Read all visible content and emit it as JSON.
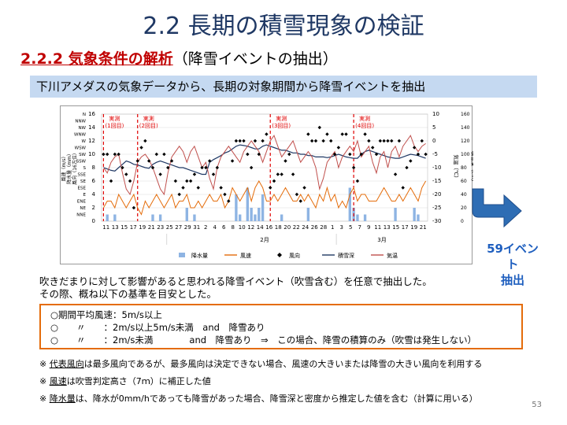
{
  "slide": {
    "title": "2.2 長期の積雪現象の検証",
    "subtitle_main": "2.2.2 気象条件の解析",
    "subtitle_rest": "（降雪イベントの抽出）",
    "header_band": "下川アメダスの気象データから、長期の対象期間から降雪イベントを抽出",
    "event_count_line1": "59イベント",
    "event_count_line2": "抽出",
    "description_1": "吹きだまりに対して影響があると思われる降雪イベント（吹雪含む）を任意で抽出した。",
    "description_2": "その際、概ね以下の基準を目安とした。",
    "criteria": [
      "○期間平均風速：5m/s以上",
      "○　　〃　　：2m/s以上5m/s未満　and　降雪あり",
      "○　　〃　　：2m/s未満　　　　and　降雪あり　⇒　この場合、降雪の積算のみ（吹雪は発生しない）"
    ],
    "note_mark": "※",
    "note1_underlined": "代表風向",
    "note1_rest": "は最多風向であるが、最多風向は決定できない場合、風速の大きいまたは降雪の大きい風向を利用する",
    "note2_underlined": "風速",
    "note2_rest": "は吹雪判定高さ（7ｍ）に補正した値",
    "note3_underlined": "降水量",
    "note3_rest": "は、降水が0mm/hであっても降雪があった場合、降雪深と密度から推定した値を含む（計算に用いる）",
    "page_number": "53",
    "colors": {
      "title": "#1f3864",
      "accent_red": "#c00000",
      "band": "#c5d9f1",
      "border_orange": "#e46c0a",
      "arrow": "#2e6db4"
    }
  },
  "chart_data": {
    "type": "line",
    "x_ticks": [
      "11",
      "13",
      "15",
      "17",
      "19",
      "21",
      "23",
      "25",
      "27",
      "29",
      "31",
      "2",
      "4",
      "6",
      "8",
      "10",
      "12",
      "14",
      "16",
      "18",
      "20",
      "22",
      "24",
      "26",
      "28",
      "1",
      "3",
      "5",
      "7",
      "9",
      "11",
      "13",
      "15",
      "17",
      "19",
      "21"
    ],
    "month_labels": [
      "2月",
      "3月"
    ],
    "left_axis_ticks": [
      "0",
      "2",
      "4",
      "6",
      "8",
      "10",
      "12",
      "14",
      "16"
    ],
    "left_axis_label": "風速（m/s）\n降水量（mm）\n風向（16方位）",
    "direction_labels": [
      "NNE",
      "NE",
      "ENE",
      "E",
      "ESE",
      "SE",
      "SSE",
      "S",
      "SSW",
      "SW",
      "WSW",
      "W",
      "WNW",
      "NW",
      "NNW",
      "N"
    ],
    "temp_axis_ticks": [
      "10",
      "5",
      "0",
      "-5",
      "-10",
      "-15",
      "-20",
      "-25",
      "-30"
    ],
    "temp_axis_label": "気温（℃）",
    "temp_range": [
      -30,
      10
    ],
    "snow_axis_ticks": [
      "160",
      "140",
      "120",
      "100",
      "80",
      "60",
      "40",
      "20",
      "0"
    ],
    "snow_axis_label": "積雪深（cm）",
    "snow_range": [
      0,
      160
    ],
    "ylim": [
      0,
      16
    ],
    "observation_labels": [
      "実測\n(1回目)",
      "実測\n(2回目)",
      "実測\n(3回目)",
      "実測\n(4回目)"
    ],
    "observation_days": [
      0.5,
      9.5,
      44.5,
      66.5
    ],
    "legend": [
      "降水量",
      "風速",
      "風向",
      "積雪深",
      "気温"
    ],
    "series": [
      {
        "name": "降水量",
        "values": [
          0,
          1,
          0,
          1,
          0,
          0,
          0,
          0,
          0,
          0,
          0,
          0,
          0,
          1,
          0,
          1,
          0,
          0,
          0,
          0,
          0,
          0,
          2,
          0,
          1,
          0,
          0,
          0,
          0,
          0,
          0,
          0,
          0,
          0,
          0,
          4,
          1,
          0,
          5,
          2,
          1,
          2,
          4,
          0,
          0,
          0,
          0,
          1,
          0,
          0,
          0,
          0,
          0,
          0,
          2,
          0,
          0,
          0,
          0,
          0,
          0,
          0,
          0,
          0,
          0,
          5,
          2,
          1,
          0,
          1,
          0,
          0,
          0,
          0,
          0,
          0,
          0,
          2,
          0,
          0,
          0,
          0,
          2,
          1,
          0,
          0
        ]
      },
      {
        "name": "風速",
        "values": [
          2,
          3,
          3,
          2,
          4,
          3,
          2,
          3,
          4,
          2,
          1,
          3,
          2,
          3,
          4,
          3,
          2,
          3,
          4,
          2,
          3,
          3,
          4,
          2,
          2,
          3,
          2,
          3,
          4,
          3,
          3,
          4,
          2,
          3,
          5,
          4,
          3,
          4,
          5,
          3,
          5,
          6,
          5,
          3,
          3,
          4,
          3,
          4,
          5,
          4,
          3,
          3,
          4,
          3,
          4,
          3,
          2,
          4,
          3,
          5,
          3,
          4,
          2,
          3,
          2,
          4,
          5,
          3,
          4,
          4,
          3,
          3,
          3,
          4,
          5,
          4,
          3,
          3,
          4,
          3,
          4,
          5,
          4,
          3,
          5,
          6
        ]
      },
      {
        "name": "風向",
        "values": [
          10,
          10,
          6,
          10,
          10,
          8,
          7,
          6,
          2,
          9,
          11,
          12,
          9,
          8,
          10,
          7,
          10,
          8,
          9,
          6,
          4,
          5,
          6,
          6,
          7,
          5,
          8,
          8,
          9,
          7,
          8,
          5,
          4,
          3,
          9,
          12,
          12,
          12,
          10,
          8,
          12,
          10,
          12,
          13,
          5,
          6,
          7,
          7,
          9,
          10,
          7,
          4,
          3,
          5,
          13,
          12,
          12,
          14,
          12,
          13,
          12,
          10,
          11,
          13,
          13,
          10,
          8,
          6,
          10,
          13,
          12,
          11,
          10,
          12,
          12,
          12,
          12,
          7,
          12,
          5,
          8,
          9,
          11,
          10,
          12,
          10
        ]
      },
      {
        "name": "積雪深",
        "values": [
          80,
          78,
          76,
          75,
          80,
          85,
          90,
          88,
          85,
          84,
          82,
          80,
          79,
          85,
          88,
          90,
          88,
          86,
          84,
          82,
          80,
          80,
          78,
          76,
          74,
          72,
          70,
          70,
          88,
          92,
          95,
          98,
          102,
          104,
          108,
          112,
          114,
          113,
          112,
          110,
          108,
          108,
          112,
          114,
          112,
          110,
          108,
          106,
          106,
          104,
          102,
          102,
          100,
          100,
          98,
          98,
          96,
          96,
          96,
          95,
          96,
          98,
          100,
          98,
          96,
          95,
          94,
          94,
          100,
          104,
          106,
          104,
          102,
          100,
          98,
          96,
          95,
          94,
          94,
          96,
          98,
          100,
          99,
          98,
          96,
          94
        ]
      },
      {
        "name": "気温",
        "values": [
          -10,
          -12,
          -8,
          -6,
          -5,
          -12,
          -18,
          -20,
          -15,
          -8,
          -6,
          -5,
          -7,
          -10,
          -14,
          -18,
          -20,
          -12,
          -6,
          -4,
          -2,
          -4,
          -8,
          -4,
          -2,
          -6,
          -10,
          -8,
          -14,
          -18,
          -10,
          -6,
          -4,
          -2,
          -4,
          -6,
          -8,
          -4,
          -2,
          0,
          -2,
          -4,
          -8,
          -4,
          0,
          2,
          -2,
          -6,
          -4,
          -2,
          0,
          -4,
          -8,
          -6,
          -4,
          -6,
          -10,
          -18,
          -14,
          -8,
          -6,
          -4,
          -10,
          -6,
          -4,
          -2,
          -4,
          0,
          -6,
          -4,
          -2,
          -8,
          -12,
          -6,
          -4,
          -10,
          -4,
          -2,
          -6,
          -2,
          0,
          2,
          -2,
          -4,
          -2,
          -1
        ]
      }
    ]
  }
}
